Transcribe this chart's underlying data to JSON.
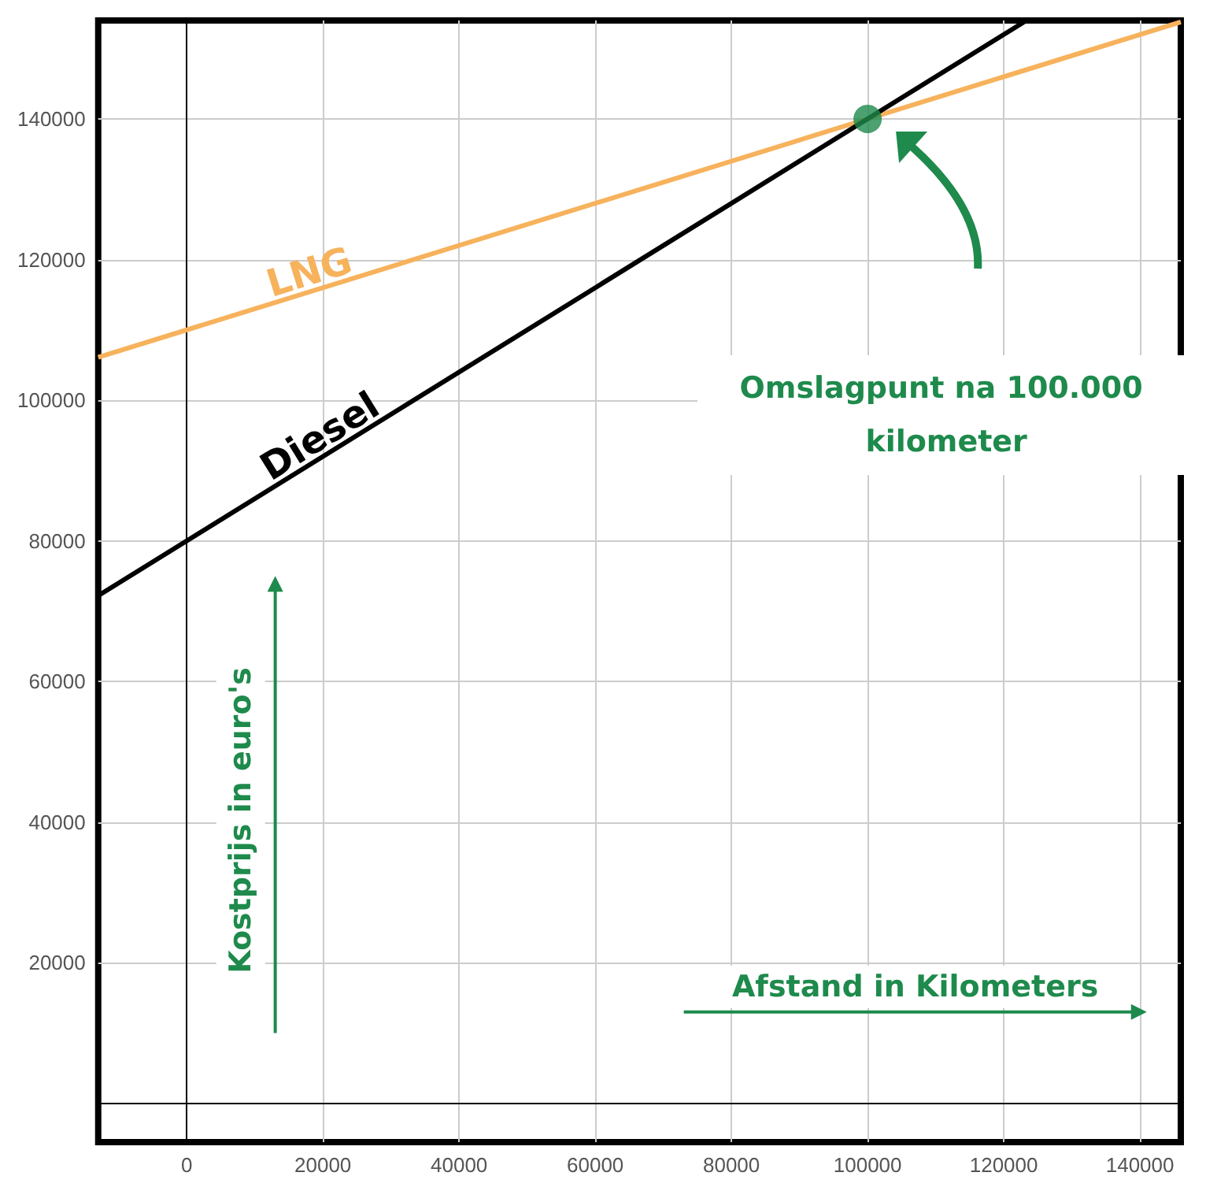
{
  "chart_data": {
    "type": "line",
    "xlabel": "Afstand in Kilometers",
    "ylabel": "Kostprijs in euro's",
    "series": [
      {
        "name": "LNG",
        "color": "#f7b25c",
        "x": [
          -13000,
          146000
        ],
        "values": [
          106100,
          153800
        ]
      },
      {
        "name": "Diesel",
        "color": "#000000",
        "x": [
          -13000,
          123000
        ],
        "values": [
          72200,
          153800
        ]
      },
      {
        "type": "scatter",
        "color": "#1e8a4c",
        "marker": "circle",
        "x": [
          100000
        ],
        "values": [
          140000
        ]
      }
    ],
    "annotations": [
      "Omslagpunt na 100.000 kilometer"
    ],
    "xlim": [
      -13000,
      146000
    ],
    "ylim": [
      -5500,
      154000
    ],
    "xticks": [
      0,
      20000,
      40000,
      60000,
      80000,
      100000,
      120000,
      140000
    ],
    "yticks": [
      20000,
      40000,
      60000,
      80000,
      100000,
      120000,
      140000
    ],
    "grid": true,
    "marker": "none",
    "line_style": "solid",
    "legend": false
  }
}
